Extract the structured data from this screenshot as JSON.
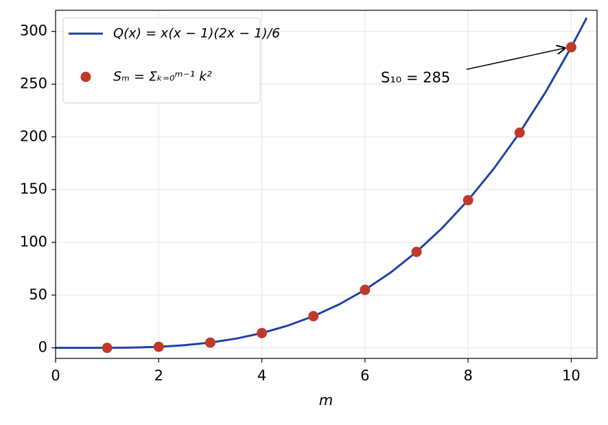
{
  "chart_data": {
    "type": "line_scatter",
    "xlabel": "m",
    "xlim": [
      0,
      10.5
    ],
    "ylim": [
      -10,
      320
    ],
    "xticks": [
      0,
      2,
      4,
      6,
      8,
      10
    ],
    "yticks": [
      0,
      50,
      100,
      150,
      200,
      250,
      300
    ],
    "grid": true,
    "legend": "upper left",
    "series": [
      {
        "name": "Q(x) = x(x − 1)(2x − 1)/6",
        "color": "#2141a8",
        "kind": "line",
        "x": [
          0,
          0.5,
          1,
          1.5,
          2,
          2.5,
          3,
          3.5,
          4,
          4.5,
          5,
          5.5,
          6,
          6.5,
          7,
          7.5,
          8,
          8.5,
          9,
          9.5,
          10,
          10.3
        ],
        "values": [
          0,
          0,
          0,
          0.25,
          1,
          2.5,
          5,
          8.75,
          14,
          21,
          30,
          41.25,
          55,
          71.5,
          91,
          113.75,
          140,
          170,
          204,
          242.25,
          285,
          312.91
        ]
      },
      {
        "name": "Sₘ = Σₖ₌₀ᵐ⁻¹ k²",
        "color": "#c0392b",
        "kind": "scatter",
        "x": [
          1,
          2,
          3,
          4,
          5,
          6,
          7,
          8,
          9,
          10
        ],
        "values": [
          0,
          1,
          5,
          14,
          30,
          55,
          91,
          140,
          204,
          285
        ]
      }
    ],
    "annotation": "S₁₀ = 285"
  }
}
